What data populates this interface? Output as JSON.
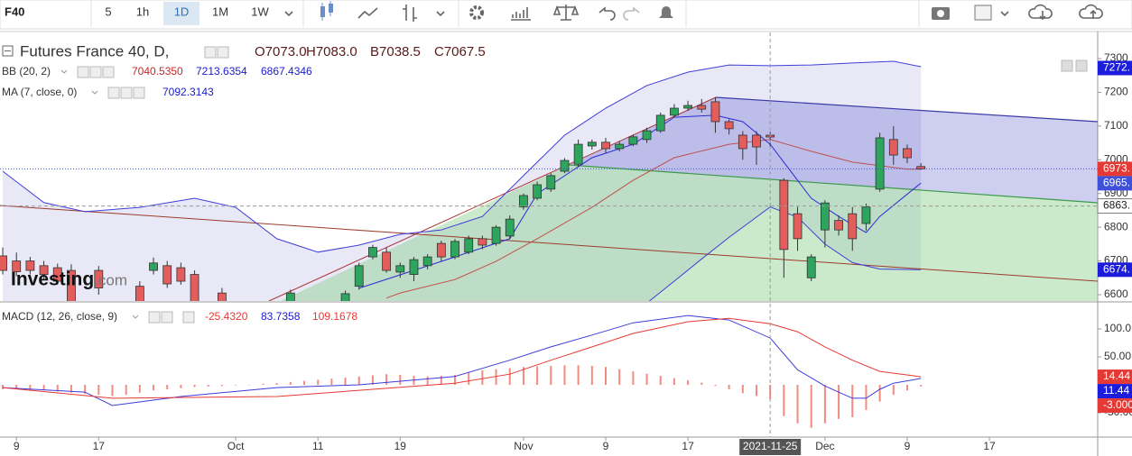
{
  "toolbar": {
    "symbol": "F40",
    "intervals": [
      "5",
      "1h",
      "1D",
      "1M",
      "1W"
    ],
    "active_interval": "1D"
  },
  "chart_data": [
    {
      "type": "candlestick",
      "title": "Futures France 40, D,",
      "quote": [
        "O7073.0",
        "H7083.0",
        "B7038.5",
        "C7067.5"
      ],
      "indicators": [
        {
          "name": "BB (20, 2)",
          "readings": [
            "7040.5350",
            "7213.6354",
            "6867.4346"
          ],
          "colors": [
            "#c62828",
            "#1a1acc",
            "#1a1acc"
          ]
        },
        {
          "name": "MA (7, close, 0)",
          "readings": [
            "7092.3143"
          ],
          "colors": [
            "#1a1acc"
          ]
        }
      ],
      "watermark": [
        "Investing",
        ".com"
      ],
      "up_color": "#2ea55e",
      "down_color": "#e35d5d",
      "x": [
        0,
        1,
        2,
        3,
        4,
        5,
        6,
        7,
        8,
        9,
        10,
        11,
        12,
        13,
        14,
        15,
        16,
        17,
        18,
        19,
        20,
        21,
        22,
        23,
        24,
        25,
        26,
        27,
        28,
        29,
        30,
        31,
        32,
        33,
        34,
        35,
        36,
        37,
        38,
        39,
        40,
        41,
        42,
        43,
        44,
        45,
        46,
        47,
        48,
        49,
        50,
        51,
        52,
        53,
        54,
        55,
        56,
        57,
        58,
        59,
        60,
        61,
        62,
        63,
        64,
        65,
        66,
        67
      ],
      "open": [
        6715,
        6700,
        6700,
        6686,
        6680,
        6672,
        null,
        6672,
        null,
        null,
        6625,
        6672,
        6686,
        6680,
        6660,
        null,
        6605,
        null,
        null,
        null,
        null,
        6575,
        null,
        null,
        null,
        6580,
        6625,
        6712,
        6726,
        6667,
        6660,
        6686,
        6752,
        6712,
        6726,
        6766,
        6752,
        6774,
        6860,
        6886,
        6913,
        6966,
        6987,
        7041,
        7052,
        7033,
        7046,
        7060,
        7086,
        7132,
        7153,
        7161,
        7172,
        7113,
        7073,
        7073,
        7073,
        6939,
        6840,
        6650,
        6792,
        6820,
        6840,
        6811,
        6913,
        7060,
        7033,
        6980
      ],
      "high": [
        6740,
        6725,
        6712,
        6700,
        6692,
        6690,
        null,
        6685,
        null,
        null,
        6640,
        6710,
        6700,
        6695,
        6672,
        null,
        6620,
        null,
        null,
        null,
        null,
        6615,
        null,
        null,
        null,
        6612,
        6695,
        6748,
        6740,
        6695,
        6712,
        6720,
        6760,
        6765,
        6775,
        6775,
        6806,
        6835,
        6900,
        6935,
        6960,
        7005,
        7060,
        7060,
        7065,
        7055,
        7075,
        7095,
        7140,
        7165,
        7175,
        7180,
        7185,
        7120,
        7085,
        7085,
        7083,
        6945,
        6860,
        6720,
        6880,
        6835,
        6860,
        6870,
        7080,
        7100,
        7045,
        6990
      ],
      "low": [
        6660,
        6655,
        6660,
        6645,
        6630,
        6570,
        null,
        6600,
        null,
        null,
        6570,
        6660,
        6620,
        6630,
        6560,
        null,
        6565,
        null,
        null,
        null,
        null,
        6565,
        null,
        null,
        null,
        6570,
        6615,
        6705,
        6665,
        6650,
        6640,
        6675,
        6700,
        6705,
        6720,
        6735,
        6745,
        6765,
        6852,
        6880,
        6905,
        6960,
        6980,
        7030,
        7020,
        7025,
        7040,
        7050,
        7080,
        7125,
        7145,
        7140,
        7080,
        7075,
        7000,
        6985,
        7038.5,
        6650,
        6730,
        6640,
        6740,
        6775,
        6730,
        6790,
        6905,
        6985,
        6990,
        6970
      ],
      "close": [
        6672,
        6668,
        6672,
        6660,
        6640,
        6580,
        null,
        6620,
        null,
        null,
        6580,
        6694,
        6632,
        6640,
        6570,
        null,
        6575,
        null,
        null,
        null,
        null,
        6605,
        null,
        null,
        null,
        6603,
        6686,
        6740,
        6672,
        6686,
        6704,
        6712,
        6712,
        6758,
        6766,
        6747,
        6800,
        6824,
        6894,
        6926,
        6953,
        6998,
        7046,
        7052,
        7033,
        7046,
        7068,
        7086,
        7132,
        7153,
        7161,
        7150,
        7113,
        7092,
        7033,
        7038,
        7067.5,
        6734,
        6766,
        6712,
        6872,
        6792,
        6766,
        6860,
        7065,
        7014,
        7006,
        6973
      ],
      "lines": [
        {
          "color": "#3f3fd8",
          "x": [
            0,
            3,
            6,
            10,
            14,
            17,
            20,
            23,
            26,
            29,
            32,
            35,
            38,
            41,
            44,
            47,
            50,
            53,
            56,
            59,
            62,
            65,
            67
          ],
          "values": [
            6966,
            6873,
            6846,
            6859,
            6886,
            6859,
            6766,
            6726,
            6747,
            6779,
            6792,
            6832,
            6953,
            7073,
            7153,
            7220,
            7260,
            7281,
            7279,
            7281,
            7287,
            7292,
            7276
          ]
        },
        {
          "color": "#3f3fd8",
          "x": [
            47,
            49,
            51,
            53,
            55,
            56,
            58,
            60,
            62,
            64,
            67
          ],
          "values": [
            6575,
            6640,
            6706,
            6770,
            6830,
            6860,
            6830,
            6750,
            6695,
            6676,
            6674
          ]
        },
        {
          "color": "#c0504d",
          "x": [
            28,
            29,
            33,
            36,
            39,
            43,
            46,
            49,
            53,
            56,
            59,
            62,
            66,
            67
          ],
          "values": [
            6590,
            6605,
            6645,
            6699,
            6766,
            6859,
            6939,
            7006,
            7046,
            7060,
            7025,
            6993,
            6972,
            6972
          ]
        },
        {
          "color": "#2b2bd6",
          "x": [
            26,
            33,
            37,
            39,
            43,
            46,
            49,
            52,
            54,
            56,
            58,
            59,
            61,
            63,
            64,
            67
          ],
          "values": [
            6619,
            6712,
            6766,
            6899,
            7006,
            7046,
            7126,
            7132,
            7113,
            7046,
            6939,
            6886,
            6832,
            6784,
            6832,
            6931
          ]
        }
      ],
      "xlim": [
        -0.2,
        79.9
      ],
      "xticks": [
        {
          "value": 1,
          "label": "9"
        },
        {
          "value": 7,
          "label": "17"
        },
        {
          "value": 17,
          "label": "Oct"
        },
        {
          "value": 23,
          "label": "11"
        },
        {
          "value": 29,
          "label": "19"
        },
        {
          "value": 38,
          "label": "Nov"
        },
        {
          "value": 44,
          "label": "9"
        },
        {
          "value": 50,
          "label": "17"
        },
        {
          "value": 60,
          "label": "Dec"
        },
        {
          "value": 66,
          "label": "9"
        },
        {
          "value": 72,
          "label": "17"
        }
      ],
      "ylim": [
        6581.3,
        7377.5
      ],
      "yticks": [
        6600,
        6700,
        6800,
        6900,
        7000,
        7100,
        7200,
        7300
      ],
      "crosshair": {
        "x": 56,
        "x_label": "2021-11-25",
        "y": 6863,
        "y_label": "6863."
      },
      "badges": [
        {
          "value": 7272,
          "label": "7272.",
          "color": "#1c1cdc"
        },
        {
          "value": 6973,
          "label": "6973.",
          "color": "#e53935",
          "guide": "dotted"
        },
        {
          "value": 6965,
          "label": "6965.",
          "color": "#3f51d8"
        },
        {
          "value": 6674,
          "label": "6674.",
          "color": "#1c1cdc"
        }
      ]
    },
    {
      "type": "macd",
      "title": "MACD (12, 26, close, 9)",
      "readings": [
        "-25.4320",
        "83.7358",
        "109.1678"
      ],
      "reading_colors": [
        "#e53935",
        "#1a1acc",
        "#e53935"
      ],
      "histogram": {
        "color": "#f28b82",
        "x": [
          0,
          1,
          2,
          3,
          4,
          5,
          6,
          7,
          8,
          9,
          10,
          11,
          12,
          13,
          14,
          15,
          16,
          17,
          18,
          19,
          20,
          21,
          22,
          23,
          24,
          25,
          26,
          27,
          28,
          29,
          30,
          31,
          32,
          33,
          34,
          35,
          36,
          37,
          38,
          39,
          40,
          41,
          42,
          43,
          44,
          45,
          46,
          47,
          48,
          49,
          50,
          51,
          52,
          53,
          54,
          55,
          56,
          57,
          58,
          59,
          60,
          61,
          62,
          63,
          64,
          65,
          66,
          67
        ],
        "values": [
          -8,
          -8,
          -10,
          -10,
          -12,
          -14,
          -16,
          -18,
          -20,
          -18,
          -14,
          -10,
          -8,
          -6,
          -4,
          -3,
          -2,
          -1,
          0,
          2,
          3,
          5,
          7,
          9,
          11,
          13,
          15,
          17,
          19,
          18,
          16,
          15,
          16,
          18,
          22,
          26,
          28,
          30,
          32,
          33,
          34,
          35,
          35,
          34,
          32,
          28,
          24,
          20,
          16,
          12,
          8,
          4,
          -2,
          -8,
          -15,
          -20,
          -25.432,
          -56,
          -69,
          -77,
          -69,
          -61,
          -58,
          -45,
          -30,
          -18,
          -10,
          -3
        ]
      },
      "lines": [
        {
          "color": "#3c3cdc",
          "x": [
            0,
            6,
            8,
            13,
            20,
            26,
            33,
            37,
            40,
            43,
            46,
            50,
            53,
            56,
            58,
            60,
            62,
            63,
            64,
            65,
            67
          ],
          "values": [
            -5,
            -13,
            -37,
            -21,
            -5,
            0,
            15,
            44,
            68,
            89,
            111,
            124,
            116,
            83.7358,
            27,
            -2,
            -24,
            -24,
            -8,
            3,
            11.44
          ]
        },
        {
          "color": "#e53935",
          "x": [
            0,
            8,
            20,
            33,
            37,
            40,
            43,
            46,
            50,
            53,
            56,
            58,
            60,
            62,
            64,
            67
          ],
          "values": [
            -5,
            -24,
            -21,
            3,
            19,
            44,
            68,
            92,
            113,
            119,
            109.1678,
            95,
            68,
            44,
            24,
            14.44
          ]
        }
      ],
      "ylim": [
        -93.5,
        146.8
      ],
      "yticks": [
        {
          "value": 100,
          "label": "100.0"
        },
        {
          "value": 50,
          "label": "50.00"
        },
        {
          "value": -50,
          "label": "-50.00"
        }
      ],
      "badges": [
        {
          "value": 14.44,
          "label": "14.44",
          "color": "#e53935"
        },
        {
          "value": 11.44,
          "label": "11.44",
          "color": "#1c1cdc"
        },
        {
          "value": -3,
          "label": "-3.000",
          "color": "#e53935"
        }
      ]
    }
  ]
}
